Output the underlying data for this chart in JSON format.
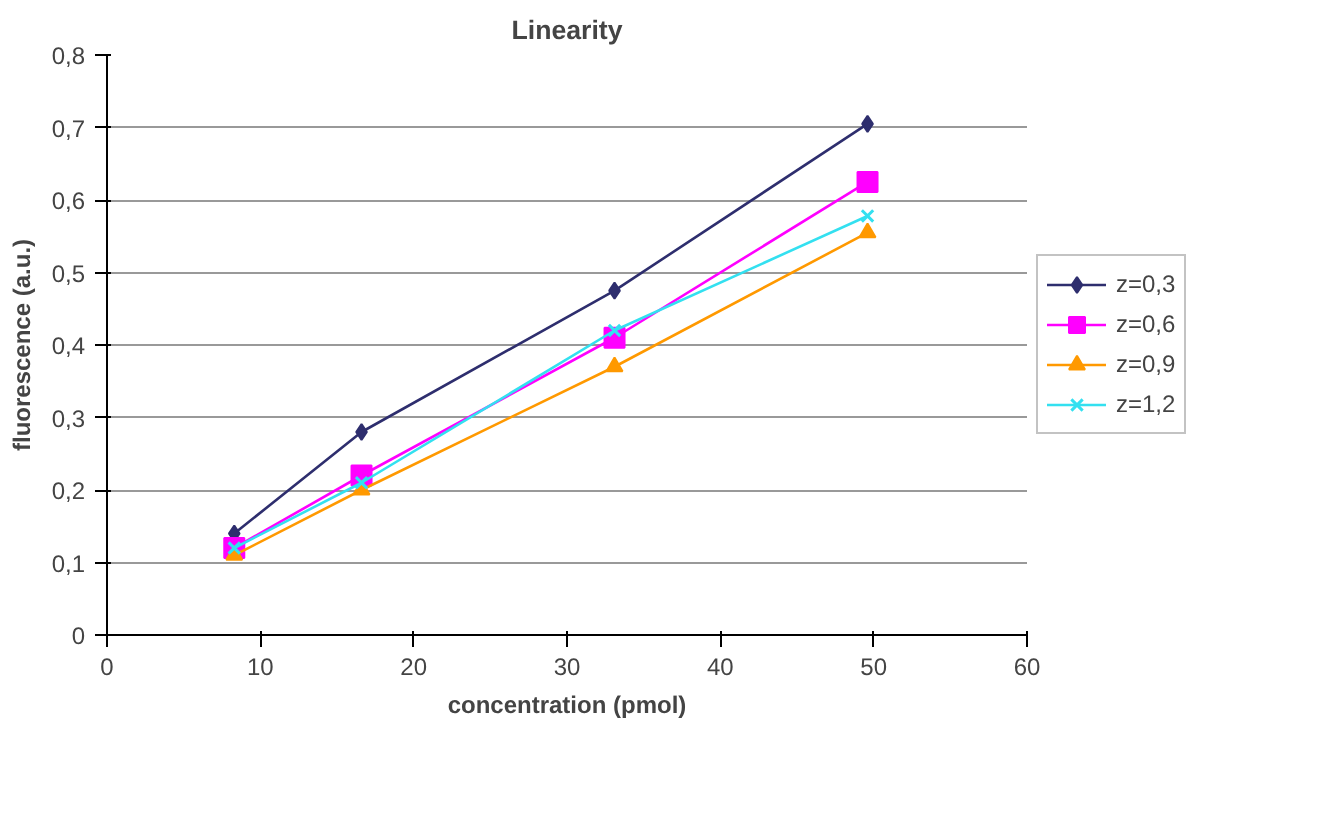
{
  "chart_data": {
    "type": "line",
    "title": "Linearity",
    "xlabel": "concentration (pmol)",
    "ylabel": "fluorescence (a.u.)",
    "x": [
      8.3,
      16.6,
      33.1,
      49.6
    ],
    "series": [
      {
        "name": "z=0,3",
        "color": "#2e2e6e",
        "marker": "diamond",
        "values": [
          0.14,
          0.28,
          0.475,
          0.705
        ]
      },
      {
        "name": "z=0,6",
        "color": "#ff00ff",
        "marker": "square",
        "values": [
          0.12,
          0.22,
          0.41,
          0.625
        ]
      },
      {
        "name": "z=0,9",
        "color": "#ff9900",
        "marker": "triangle",
        "values": [
          0.11,
          0.2,
          0.37,
          0.555
        ]
      },
      {
        "name": "z=1,2",
        "color": "#33e0f0",
        "marker": "cross",
        "values": [
          0.12,
          0.21,
          0.42,
          0.578
        ]
      }
    ],
    "xlim": [
      0,
      60
    ],
    "xticks": [
      0,
      10,
      20,
      30,
      40,
      50,
      60
    ],
    "ylim": [
      0,
      0.8
    ],
    "yticks": [
      0,
      {
        "value": 0.1,
        "label": "0,1"
      },
      {
        "value": 0.2,
        "label": "0,2"
      },
      {
        "value": 0.3,
        "label": "0,3"
      },
      {
        "value": 0.4,
        "label": "0,4"
      },
      {
        "value": 0.5,
        "label": "0,5"
      },
      {
        "value": 0.6,
        "label": "0,6"
      },
      {
        "value": 0.7,
        "label": "0,7"
      },
      {
        "value": 0.8,
        "label": "0,8"
      }
    ],
    "grid": "y",
    "legend": "right",
    "line_style": "solid"
  }
}
